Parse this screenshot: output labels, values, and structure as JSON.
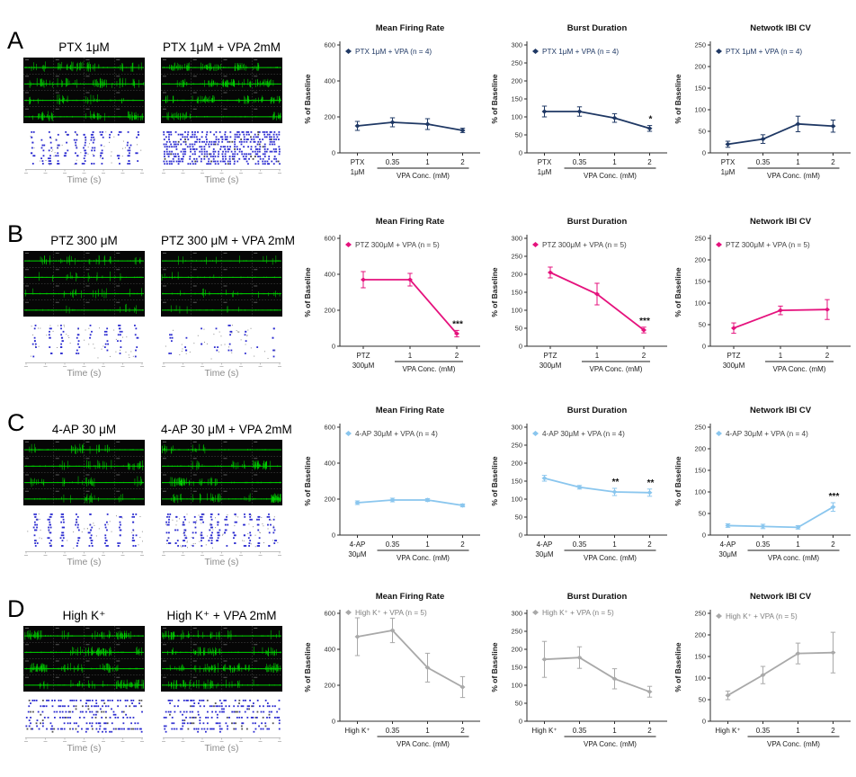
{
  "figure": {
    "background": "#ffffff",
    "time_axis_color": "#aaaaaa",
    "spike_color": "#00d400",
    "raster_color": "#2b2bd0",
    "panels": [
      {
        "label": "A",
        "color": "#1f3864",
        "legend_text_color": "#1f3864",
        "traces": [
          {
            "title": "PTX 1μM",
            "time_label": "Time (s)",
            "style": {
              "density": 0.5,
              "amp": 0.95,
              "raster": "columns",
              "raster_cols": 13,
              "raster_rows": 13,
              "raster_density": 0.6
            }
          },
          {
            "title": "PTX 1μM + VPA 2mM",
            "time_label": "Time (s)",
            "style": {
              "density": 0.85,
              "amp": 0.8,
              "raster": "dense",
              "raster_rows": 14,
              "raster_density": 0.6
            }
          }
        ]
      },
      {
        "label": "B",
        "color": "#e5127d",
        "legend_text_color": "#3f3f3f",
        "traces": [
          {
            "title": "PTZ 300 μM",
            "time_label": "Time (s)",
            "style": {
              "density": 0.24,
              "amp": 1.0,
              "raster": "columns",
              "raster_cols": 8,
              "raster_rows": 11,
              "raster_density": 0.55
            }
          },
          {
            "title": "PTZ 300 μM + VPA 2mM",
            "time_label": "Time (s)",
            "style": {
              "density": 0.16,
              "amp": 0.9,
              "raster": "columns-sparse",
              "raster_cols": 8,
              "raster_rows": 11,
              "raster_density": 0.3
            }
          }
        ]
      },
      {
        "label": "C",
        "color": "#8ac6ee",
        "legend_text_color": "#3f3f3f",
        "traces": [
          {
            "title": "4-AP 30 μM",
            "time_label": "Time (s)",
            "style": {
              "density": 0.38,
              "amp": 1.0,
              "raster": "columns",
              "raster_cols": 8,
              "raster_rows": 13,
              "raster_density": 0.78
            }
          },
          {
            "title": "4-AP 30 μM + VPA 2mM",
            "time_label": "Time (s)",
            "style": {
              "density": 0.7,
              "amp": 0.9,
              "raster": "columns-dense",
              "raster_cols": 14,
              "raster_rows": 13,
              "raster_density": 0.55
            }
          }
        ]
      },
      {
        "label": "D",
        "color": "#a9a9a9",
        "legend_text_color": "#7f7f7f",
        "traces": [
          {
            "title": "High K⁺",
            "time_label": "Time (s)",
            "style": {
              "density": 0.75,
              "amp": 0.9,
              "raster": "rows",
              "raster_rows": 12,
              "raster_density": 0.5
            }
          },
          {
            "title": "High K⁺ + VPA 2mM",
            "time_label": "Time (s)",
            "style": {
              "density": 0.65,
              "amp": 0.9,
              "raster": "rows",
              "raster_rows": 12,
              "raster_density": 0.45
            }
          }
        ]
      }
    ]
  },
  "chart_data": [
    {
      "type": "line",
      "panel_index": 0,
      "title": "Mean Firing Rate",
      "legend": "PTX 1μM + VPA (n = 4)",
      "ylabel": "% of Baseline",
      "xlabel": "VPA Conc. (mM)",
      "categories": [
        "PTX|1μM",
        "0.35",
        "1",
        "2"
      ],
      "vpa_start": 1,
      "values": [
        150,
        170,
        160,
        125
      ],
      "errors": [
        25,
        25,
        30,
        12
      ],
      "sig": [
        "",
        "",
        "",
        ""
      ],
      "ylim": [
        0,
        600
      ],
      "yticks": [
        0,
        200,
        400,
        600
      ]
    },
    {
      "type": "line",
      "panel_index": 0,
      "title": "Burst Duration",
      "legend": "PTX 1μM + VPA (n = 4)",
      "ylabel": "% of Baseline",
      "xlabel": "VPA Conc. (mM)",
      "categories": [
        "PTX|1μM",
        "0.35",
        "1",
        "2"
      ],
      "vpa_start": 1,
      "values": [
        115,
        115,
        97,
        68
      ],
      "errors": [
        15,
        13,
        12,
        8
      ],
      "sig": [
        "",
        "",
        "",
        "*"
      ],
      "ylim": [
        0,
        300
      ],
      "yticks": [
        0,
        50,
        100,
        150,
        200,
        250,
        300
      ]
    },
    {
      "type": "line",
      "panel_index": 0,
      "title": "Netwotk IBI CV",
      "legend": "PTX 1μM + VPA (n = 4)",
      "ylabel": "% of Baseline",
      "xlabel": "VPA Conc. (mM)",
      "categories": [
        "PTX|1μM",
        "0.35",
        "1",
        "2"
      ],
      "vpa_start": 1,
      "values": [
        20,
        32,
        67,
        62
      ],
      "errors": [
        7,
        10,
        18,
        14
      ],
      "sig": [
        "",
        "",
        "",
        ""
      ],
      "ylim": [
        0,
        250
      ],
      "yticks": [
        0,
        50,
        100,
        150,
        200,
        250
      ]
    },
    {
      "type": "line",
      "panel_index": 1,
      "title": "Mean Firing Rate",
      "legend": "PTZ 300μM + VPA (n = 5)",
      "ylabel": "% of Baseline",
      "xlabel": "VPA Conc. (mM)",
      "categories": [
        "PTZ|300μM",
        "1",
        "2"
      ],
      "vpa_start": 1,
      "values": [
        370,
        370,
        70
      ],
      "errors": [
        45,
        35,
        18
      ],
      "sig": [
        "",
        "",
        "***"
      ],
      "ylim": [
        0,
        600
      ],
      "yticks": [
        0,
        200,
        400,
        600
      ]
    },
    {
      "type": "line",
      "panel_index": 1,
      "title": "Burst Duration",
      "legend": "PTZ 300μM + VPA (n = 5)",
      "ylabel": "% of Baseline",
      "xlabel": "VPA Conc. (mM)",
      "categories": [
        "PTZ|300μM",
        "1",
        "2"
      ],
      "vpa_start": 1,
      "values": [
        205,
        145,
        45
      ],
      "errors": [
        15,
        30,
        8
      ],
      "sig": [
        "",
        "",
        "***"
      ],
      "ylim": [
        0,
        300
      ],
      "yticks": [
        0,
        50,
        100,
        150,
        200,
        250,
        300
      ]
    },
    {
      "type": "line",
      "panel_index": 1,
      "title": "Network IBI CV",
      "legend": "PTZ 300μM + VPA (n = 5)",
      "ylabel": "% of Baseline",
      "xlabel": "VPA Conc. (mM)",
      "categories": [
        "PTZ|300μM",
        "1",
        "2"
      ],
      "vpa_start": 1,
      "values": [
        42,
        83,
        85
      ],
      "errors": [
        12,
        10,
        23
      ],
      "sig": [
        "",
        "",
        ""
      ],
      "ylim": [
        0,
        250
      ],
      "yticks": [
        0,
        50,
        100,
        150,
        200,
        250
      ]
    },
    {
      "type": "line",
      "panel_index": 2,
      "title": "Mean Firing Rate",
      "legend": "4-AP 30μM + VPA (n = 4)",
      "ylabel": "% of Baseline",
      "xlabel": "VPA Conc. (mM)",
      "categories": [
        "4-AP|30μM",
        "0.35",
        "1",
        "2"
      ],
      "vpa_start": 1,
      "values": [
        180,
        195,
        195,
        165
      ],
      "errors": [
        10,
        10,
        8,
        8
      ],
      "sig": [
        "",
        "",
        "",
        ""
      ],
      "ylim": [
        0,
        600
      ],
      "yticks": [
        0,
        200,
        400,
        600
      ]
    },
    {
      "type": "line",
      "panel_index": 2,
      "title": "Burst Duration",
      "legend": "4-AP 30μM + VPA (n = 4)",
      "ylabel": "% of Baseline",
      "xlabel": "VPA Conc. (mM)",
      "categories": [
        "4-AP|30μM",
        "0.35",
        "1",
        "2"
      ],
      "vpa_start": 1,
      "values": [
        158,
        133,
        120,
        118
      ],
      "errors": [
        8,
        5,
        10,
        10
      ],
      "sig": [
        "",
        "",
        "**",
        "**"
      ],
      "ylim": [
        0,
        300
      ],
      "yticks": [
        0,
        50,
        100,
        150,
        200,
        250,
        300
      ]
    },
    {
      "type": "line",
      "panel_index": 2,
      "title": "Network IBI CV",
      "legend": "4-AP 30μM + VPA (n = 4)",
      "ylabel": "% of Baseline",
      "xlabel": "VPA conc. (mM)",
      "categories": [
        "4-AP|30μM",
        "0.35",
        "1",
        "2"
      ],
      "vpa_start": 1,
      "values": [
        22,
        20,
        18,
        65
      ],
      "errors": [
        4,
        5,
        4,
        10
      ],
      "sig": [
        "",
        "",
        "",
        "***"
      ],
      "ylim": [
        0,
        250
      ],
      "yticks": [
        0,
        50,
        100,
        150,
        200,
        250
      ]
    },
    {
      "type": "line",
      "panel_index": 3,
      "title": "Mean Firing Rate",
      "legend": "High K⁺ + VPA (n = 5)",
      "legend_dy": 2,
      "ylabel": "% of Baseline",
      "xlabel": "VPA Conc. (mM)",
      "categories": [
        "High K⁺",
        "0.35",
        "1",
        "2"
      ],
      "vpa_start": 1,
      "values": [
        470,
        505,
        298,
        190
      ],
      "errors": [
        105,
        68,
        80,
        58
      ],
      "sig": [
        "",
        "",
        "",
        ""
      ],
      "ylim": [
        0,
        600
      ],
      "yticks": [
        0,
        200,
        400,
        600
      ]
    },
    {
      "type": "line",
      "panel_index": 3,
      "title": "Burst Duration",
      "legend": "High K⁺ + VPA (n = 5)",
      "legend_dy": 2,
      "ylabel": "% of Baseline",
      "xlabel": "VPA Conc. (mM)",
      "categories": [
        "High K⁺",
        "0.35",
        "1",
        "2"
      ],
      "vpa_start": 1,
      "values": [
        172,
        177,
        118,
        82
      ],
      "errors": [
        50,
        30,
        28,
        15
      ],
      "sig": [
        "",
        "",
        "",
        ""
      ],
      "ylim": [
        0,
        300
      ],
      "yticks": [
        0,
        50,
        100,
        150,
        200,
        250,
        300
      ]
    },
    {
      "type": "line",
      "panel_index": 3,
      "title": "Network IBI CV",
      "legend": "High K⁺ + VPA (n = 5)",
      "legend_dy": 6,
      "ylabel": "% of Baseline",
      "xlabel": "VPA Conc. (mM)",
      "categories": [
        "High K⁺",
        "0.35",
        "1",
        "2"
      ],
      "vpa_start": 1,
      "values": [
        60,
        107,
        157,
        159
      ],
      "errors": [
        10,
        20,
        24,
        47
      ],
      "sig": [
        "",
        "",
        "",
        ""
      ],
      "ylim": [
        0,
        250
      ],
      "yticks": [
        0,
        50,
        100,
        150,
        200,
        250
      ]
    }
  ]
}
